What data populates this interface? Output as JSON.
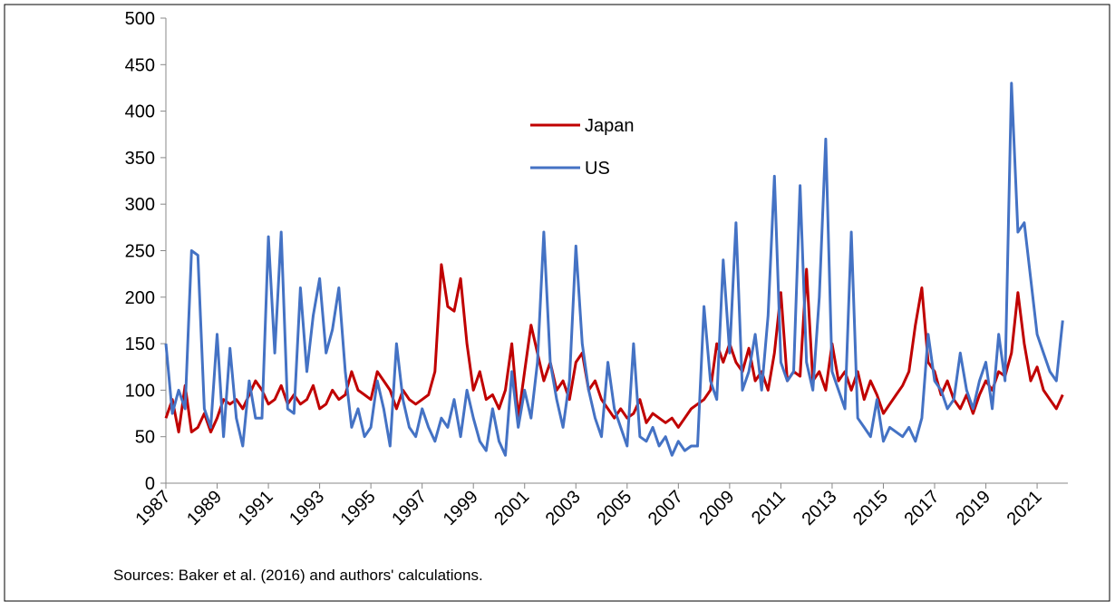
{
  "chart_data": {
    "type": "line",
    "x": [
      1987,
      1987.25,
      1987.5,
      1987.75,
      1988,
      1988.25,
      1988.5,
      1988.75,
      1989,
      1989.25,
      1989.5,
      1989.75,
      1990,
      1990.25,
      1990.5,
      1990.75,
      1991,
      1991.25,
      1991.5,
      1991.75,
      1992,
      1992.25,
      1992.5,
      1992.75,
      1993,
      1993.25,
      1993.5,
      1993.75,
      1994,
      1994.25,
      1994.5,
      1994.75,
      1995,
      1995.25,
      1995.5,
      1995.75,
      1996,
      1996.25,
      1996.5,
      1996.75,
      1997,
      1997.25,
      1997.5,
      1997.75,
      1998,
      1998.25,
      1998.5,
      1998.75,
      1999,
      1999.25,
      1999.5,
      1999.75,
      2000,
      2000.25,
      2000.5,
      2000.75,
      2001,
      2001.25,
      2001.5,
      2001.75,
      2002,
      2002.25,
      2002.5,
      2002.75,
      2003,
      2003.25,
      2003.5,
      2003.75,
      2004,
      2004.25,
      2004.5,
      2004.75,
      2005,
      2005.25,
      2005.5,
      2005.75,
      2006,
      2006.25,
      2006.5,
      2006.75,
      2007,
      2007.25,
      2007.5,
      2007.75,
      2008,
      2008.25,
      2008.5,
      2008.75,
      2009,
      2009.25,
      2009.5,
      2009.75,
      2010,
      2010.25,
      2010.5,
      2010.75,
      2011,
      2011.25,
      2011.5,
      2011.75,
      2012,
      2012.25,
      2012.5,
      2012.75,
      2013,
      2013.25,
      2013.5,
      2013.75,
      2014,
      2014.25,
      2014.5,
      2014.75,
      2015,
      2015.25,
      2015.5,
      2015.75,
      2016,
      2016.25,
      2016.5,
      2016.75,
      2017,
      2017.25,
      2017.5,
      2017.75,
      2018,
      2018.25,
      2018.5,
      2018.75,
      2019,
      2019.25,
      2019.5,
      2019.75,
      2020,
      2020.25,
      2020.5,
      2020.75,
      2021,
      2021.25,
      2021.5,
      2021.75,
      2022
    ],
    "series": [
      {
        "name": "Japan",
        "color": "#c00000",
        "values": [
          70,
          90,
          55,
          105,
          55,
          60,
          75,
          55,
          70,
          90,
          85,
          90,
          80,
          95,
          110,
          100,
          85,
          90,
          105,
          85,
          95,
          85,
          90,
          105,
          80,
          85,
          100,
          90,
          95,
          120,
          100,
          95,
          90,
          120,
          110,
          100,
          80,
          100,
          90,
          85,
          90,
          95,
          120,
          235,
          190,
          185,
          220,
          150,
          100,
          120,
          90,
          95,
          80,
          100,
          150,
          70,
          120,
          170,
          140,
          110,
          130,
          100,
          110,
          90,
          130,
          140,
          100,
          110,
          90,
          80,
          70,
          80,
          70,
          75,
          90,
          65,
          75,
          70,
          65,
          70,
          60,
          70,
          80,
          85,
          90,
          100,
          150,
          130,
          150,
          130,
          120,
          145,
          110,
          120,
          100,
          140,
          205,
          110,
          120,
          115,
          230,
          110,
          120,
          100,
          150,
          110,
          120,
          100,
          120,
          90,
          110,
          95,
          75,
          85,
          95,
          105,
          120,
          170,
          210,
          130,
          120,
          95,
          110,
          90,
          80,
          95,
          75,
          95,
          110,
          100,
          120,
          115,
          140,
          205,
          150,
          110,
          125,
          100,
          90,
          80,
          95
        ]
      },
      {
        "name": "US",
        "color": "#4472c4",
        "values": [
          150,
          75,
          100,
          80,
          250,
          245,
          80,
          60,
          160,
          50,
          145,
          70,
          40,
          110,
          70,
          70,
          265,
          140,
          270,
          80,
          75,
          210,
          120,
          180,
          220,
          140,
          165,
          210,
          120,
          60,
          80,
          50,
          60,
          110,
          80,
          40,
          150,
          90,
          60,
          50,
          80,
          60,
          45,
          70,
          60,
          90,
          50,
          100,
          70,
          45,
          35,
          80,
          45,
          30,
          120,
          60,
          100,
          70,
          130,
          270,
          130,
          90,
          60,
          110,
          255,
          150,
          100,
          70,
          50,
          130,
          80,
          60,
          40,
          150,
          50,
          45,
          60,
          40,
          50,
          30,
          45,
          35,
          40,
          40,
          190,
          110,
          90,
          240,
          140,
          280,
          100,
          120,
          160,
          100,
          180,
          330,
          130,
          110,
          120,
          320,
          130,
          100,
          200,
          370,
          120,
          100,
          80,
          270,
          70,
          60,
          50,
          90,
          45,
          60,
          55,
          50,
          60,
          45,
          70,
          160,
          110,
          100,
          80,
          90,
          140,
          100,
          80,
          110,
          130,
          80,
          160,
          110,
          430,
          270,
          280,
          220,
          160,
          140,
          120,
          110,
          175
        ]
      }
    ],
    "xlim": [
      1987,
      2022.2
    ],
    "xticks": [
      1987,
      1989,
      1991,
      1993,
      1995,
      1997,
      1999,
      2001,
      2003,
      2005,
      2007,
      2009,
      2011,
      2013,
      2015,
      2017,
      2019,
      2021
    ],
    "ylim": [
      0,
      500
    ],
    "yticks": [
      0,
      50,
      100,
      150,
      200,
      250,
      300,
      350,
      400,
      450,
      500
    ],
    "grid": false,
    "source": "Sources: Baker et al. (2016) and authors' calculations."
  }
}
